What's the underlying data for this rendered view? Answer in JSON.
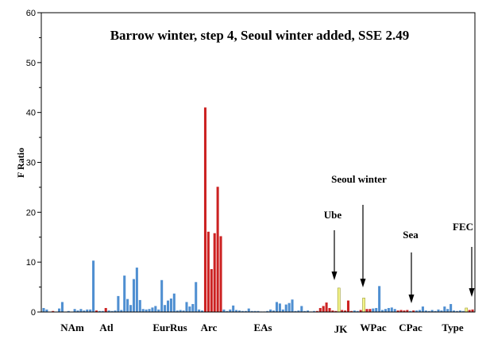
{
  "chart_data": {
    "type": "bar",
    "title": "Barrow winter, step 4, Seoul winter added, SSE 2.49",
    "ylabel": "F Ratio",
    "xlabel": "",
    "ylim": [
      0,
      60
    ],
    "yticks": [
      "0",
      "10",
      "20",
      "30",
      "40",
      "50",
      "60"
    ],
    "grid": false,
    "colors": {
      "blue": "#4f8fd1",
      "red": "#cc2222",
      "yellow": "#f4f48a",
      "axis": "#000000"
    },
    "region_labels": [
      "NAm",
      "Atl",
      "EurRus",
      "Arc",
      "EAs",
      "JK",
      "WPac",
      "CPac",
      "Type"
    ],
    "annotations": [
      "Seoul winter",
      "Ube",
      "Sea",
      "FEC"
    ],
    "bars": [
      {
        "v": 0.8,
        "c": "blue"
      },
      {
        "v": 0.5,
        "c": "blue"
      },
      {
        "v": 0.0,
        "c": "blue"
      },
      {
        "v": 0.2,
        "c": "red"
      },
      {
        "v": 0.0,
        "c": "blue"
      },
      {
        "v": 0.7,
        "c": "blue"
      },
      {
        "v": 2.0,
        "c": "blue"
      },
      {
        "v": 0.0,
        "c": "blue"
      },
      {
        "v": 0.2,
        "c": "blue"
      },
      {
        "v": 0.0,
        "c": "blue"
      },
      {
        "v": 0.6,
        "c": "blue"
      },
      {
        "v": 0.3,
        "c": "blue"
      },
      {
        "v": 0.6,
        "c": "blue"
      },
      {
        "v": 0.3,
        "c": "blue"
      },
      {
        "v": 0.5,
        "c": "blue"
      },
      {
        "v": 0.5,
        "c": "blue"
      },
      {
        "v": 10.3,
        "c": "blue"
      },
      {
        "v": 0.3,
        "c": "red"
      },
      {
        "v": 0.2,
        "c": "blue"
      },
      {
        "v": 0.2,
        "c": "blue"
      },
      {
        "v": 0.8,
        "c": "red"
      },
      {
        "v": 0.3,
        "c": "blue"
      },
      {
        "v": 0.2,
        "c": "blue"
      },
      {
        "v": 0.3,
        "c": "blue"
      },
      {
        "v": 3.2,
        "c": "blue"
      },
      {
        "v": 0.4,
        "c": "blue"
      },
      {
        "v": 7.3,
        "c": "blue"
      },
      {
        "v": 2.6,
        "c": "blue"
      },
      {
        "v": 1.4,
        "c": "blue"
      },
      {
        "v": 6.6,
        "c": "blue"
      },
      {
        "v": 8.9,
        "c": "blue"
      },
      {
        "v": 2.4,
        "c": "blue"
      },
      {
        "v": 0.6,
        "c": "blue"
      },
      {
        "v": 0.5,
        "c": "blue"
      },
      {
        "v": 0.6,
        "c": "blue"
      },
      {
        "v": 0.9,
        "c": "blue"
      },
      {
        "v": 1.2,
        "c": "blue"
      },
      {
        "v": 0.5,
        "c": "blue"
      },
      {
        "v": 6.4,
        "c": "blue"
      },
      {
        "v": 1.4,
        "c": "blue"
      },
      {
        "v": 2.3,
        "c": "blue"
      },
      {
        "v": 2.7,
        "c": "blue"
      },
      {
        "v": 3.7,
        "c": "blue"
      },
      {
        "v": 0.3,
        "c": "blue"
      },
      {
        "v": 0.4,
        "c": "blue"
      },
      {
        "v": 0.3,
        "c": "blue"
      },
      {
        "v": 2.0,
        "c": "blue"
      },
      {
        "v": 1.1,
        "c": "blue"
      },
      {
        "v": 1.6,
        "c": "blue"
      },
      {
        "v": 6.0,
        "c": "blue"
      },
      {
        "v": 0.5,
        "c": "blue"
      },
      {
        "v": 0.3,
        "c": "blue"
      },
      {
        "v": 41.0,
        "c": "red"
      },
      {
        "v": 16.1,
        "c": "red"
      },
      {
        "v": 8.6,
        "c": "red"
      },
      {
        "v": 15.8,
        "c": "red"
      },
      {
        "v": 25.1,
        "c": "red"
      },
      {
        "v": 15.2,
        "c": "red"
      },
      {
        "v": 0.5,
        "c": "blue"
      },
      {
        "v": 0.2,
        "c": "blue"
      },
      {
        "v": 0.5,
        "c": "blue"
      },
      {
        "v": 1.3,
        "c": "blue"
      },
      {
        "v": 0.4,
        "c": "blue"
      },
      {
        "v": 0.3,
        "c": "blue"
      },
      {
        "v": 0.2,
        "c": "blue"
      },
      {
        "v": 0.2,
        "c": "blue"
      },
      {
        "v": 0.7,
        "c": "blue"
      },
      {
        "v": 0.2,
        "c": "blue"
      },
      {
        "v": 0.2,
        "c": "blue"
      },
      {
        "v": 0.2,
        "c": "blue"
      },
      {
        "v": 0.1,
        "c": "blue"
      },
      {
        "v": 0.1,
        "c": "blue"
      },
      {
        "v": 0.2,
        "c": "blue"
      },
      {
        "v": 0.5,
        "c": "blue"
      },
      {
        "v": 0.3,
        "c": "blue"
      },
      {
        "v": 2.0,
        "c": "blue"
      },
      {
        "v": 1.7,
        "c": "blue"
      },
      {
        "v": 0.5,
        "c": "blue"
      },
      {
        "v": 1.5,
        "c": "blue"
      },
      {
        "v": 1.8,
        "c": "blue"
      },
      {
        "v": 2.5,
        "c": "blue"
      },
      {
        "v": 0.2,
        "c": "blue"
      },
      {
        "v": 0.3,
        "c": "blue"
      },
      {
        "v": 1.2,
        "c": "blue"
      },
      {
        "v": 0.2,
        "c": "blue"
      },
      {
        "v": 0.3,
        "c": "blue"
      },
      {
        "v": 0.1,
        "c": "blue"
      },
      {
        "v": 0.2,
        "c": "blue"
      },
      {
        "v": 0.2,
        "c": "red"
      },
      {
        "v": 0.8,
        "c": "red"
      },
      {
        "v": 1.2,
        "c": "red"
      },
      {
        "v": 1.9,
        "c": "red"
      },
      {
        "v": 0.8,
        "c": "red"
      },
      {
        "v": 0.3,
        "c": "red"
      },
      {
        "v": 0.2,
        "c": "red"
      },
      {
        "v": 4.8,
        "c": "yellow"
      },
      {
        "v": 0.4,
        "c": "red"
      },
      {
        "v": 0.3,
        "c": "red"
      },
      {
        "v": 2.3,
        "c": "red"
      },
      {
        "v": 0.2,
        "c": "red"
      },
      {
        "v": 0.3,
        "c": "blue"
      },
      {
        "v": 0.2,
        "c": "blue"
      },
      {
        "v": 0.4,
        "c": "red"
      },
      {
        "v": 2.8,
        "c": "yellow"
      },
      {
        "v": 0.6,
        "c": "red"
      },
      {
        "v": 0.6,
        "c": "red"
      },
      {
        "v": 0.7,
        "c": "blue"
      },
      {
        "v": 0.8,
        "c": "blue"
      },
      {
        "v": 5.2,
        "c": "blue"
      },
      {
        "v": 0.4,
        "c": "blue"
      },
      {
        "v": 0.6,
        "c": "blue"
      },
      {
        "v": 0.8,
        "c": "blue"
      },
      {
        "v": 0.9,
        "c": "blue"
      },
      {
        "v": 0.6,
        "c": "blue"
      },
      {
        "v": 0.3,
        "c": "red"
      },
      {
        "v": 0.4,
        "c": "red"
      },
      {
        "v": 0.3,
        "c": "red"
      },
      {
        "v": 0.4,
        "c": "red"
      },
      {
        "v": 0.2,
        "c": "blue"
      },
      {
        "v": 0.3,
        "c": "red"
      },
      {
        "v": 0.3,
        "c": "blue"
      },
      {
        "v": 0.4,
        "c": "blue"
      },
      {
        "v": 1.1,
        "c": "blue"
      },
      {
        "v": 0.3,
        "c": "blue"
      },
      {
        "v": 0.2,
        "c": "blue"
      },
      {
        "v": 0.4,
        "c": "blue"
      },
      {
        "v": 0.2,
        "c": "blue"
      },
      {
        "v": 0.5,
        "c": "blue"
      },
      {
        "v": 0.3,
        "c": "blue"
      },
      {
        "v": 1.1,
        "c": "blue"
      },
      {
        "v": 0.6,
        "c": "blue"
      },
      {
        "v": 1.6,
        "c": "blue"
      },
      {
        "v": 0.3,
        "c": "blue"
      },
      {
        "v": 0.2,
        "c": "blue"
      },
      {
        "v": 0.3,
        "c": "blue"
      },
      {
        "v": 0.2,
        "c": "blue"
      },
      {
        "v": 0.8,
        "c": "yellow"
      },
      {
        "v": 0.4,
        "c": "red"
      },
      {
        "v": 0.5,
        "c": "red"
      }
    ]
  }
}
